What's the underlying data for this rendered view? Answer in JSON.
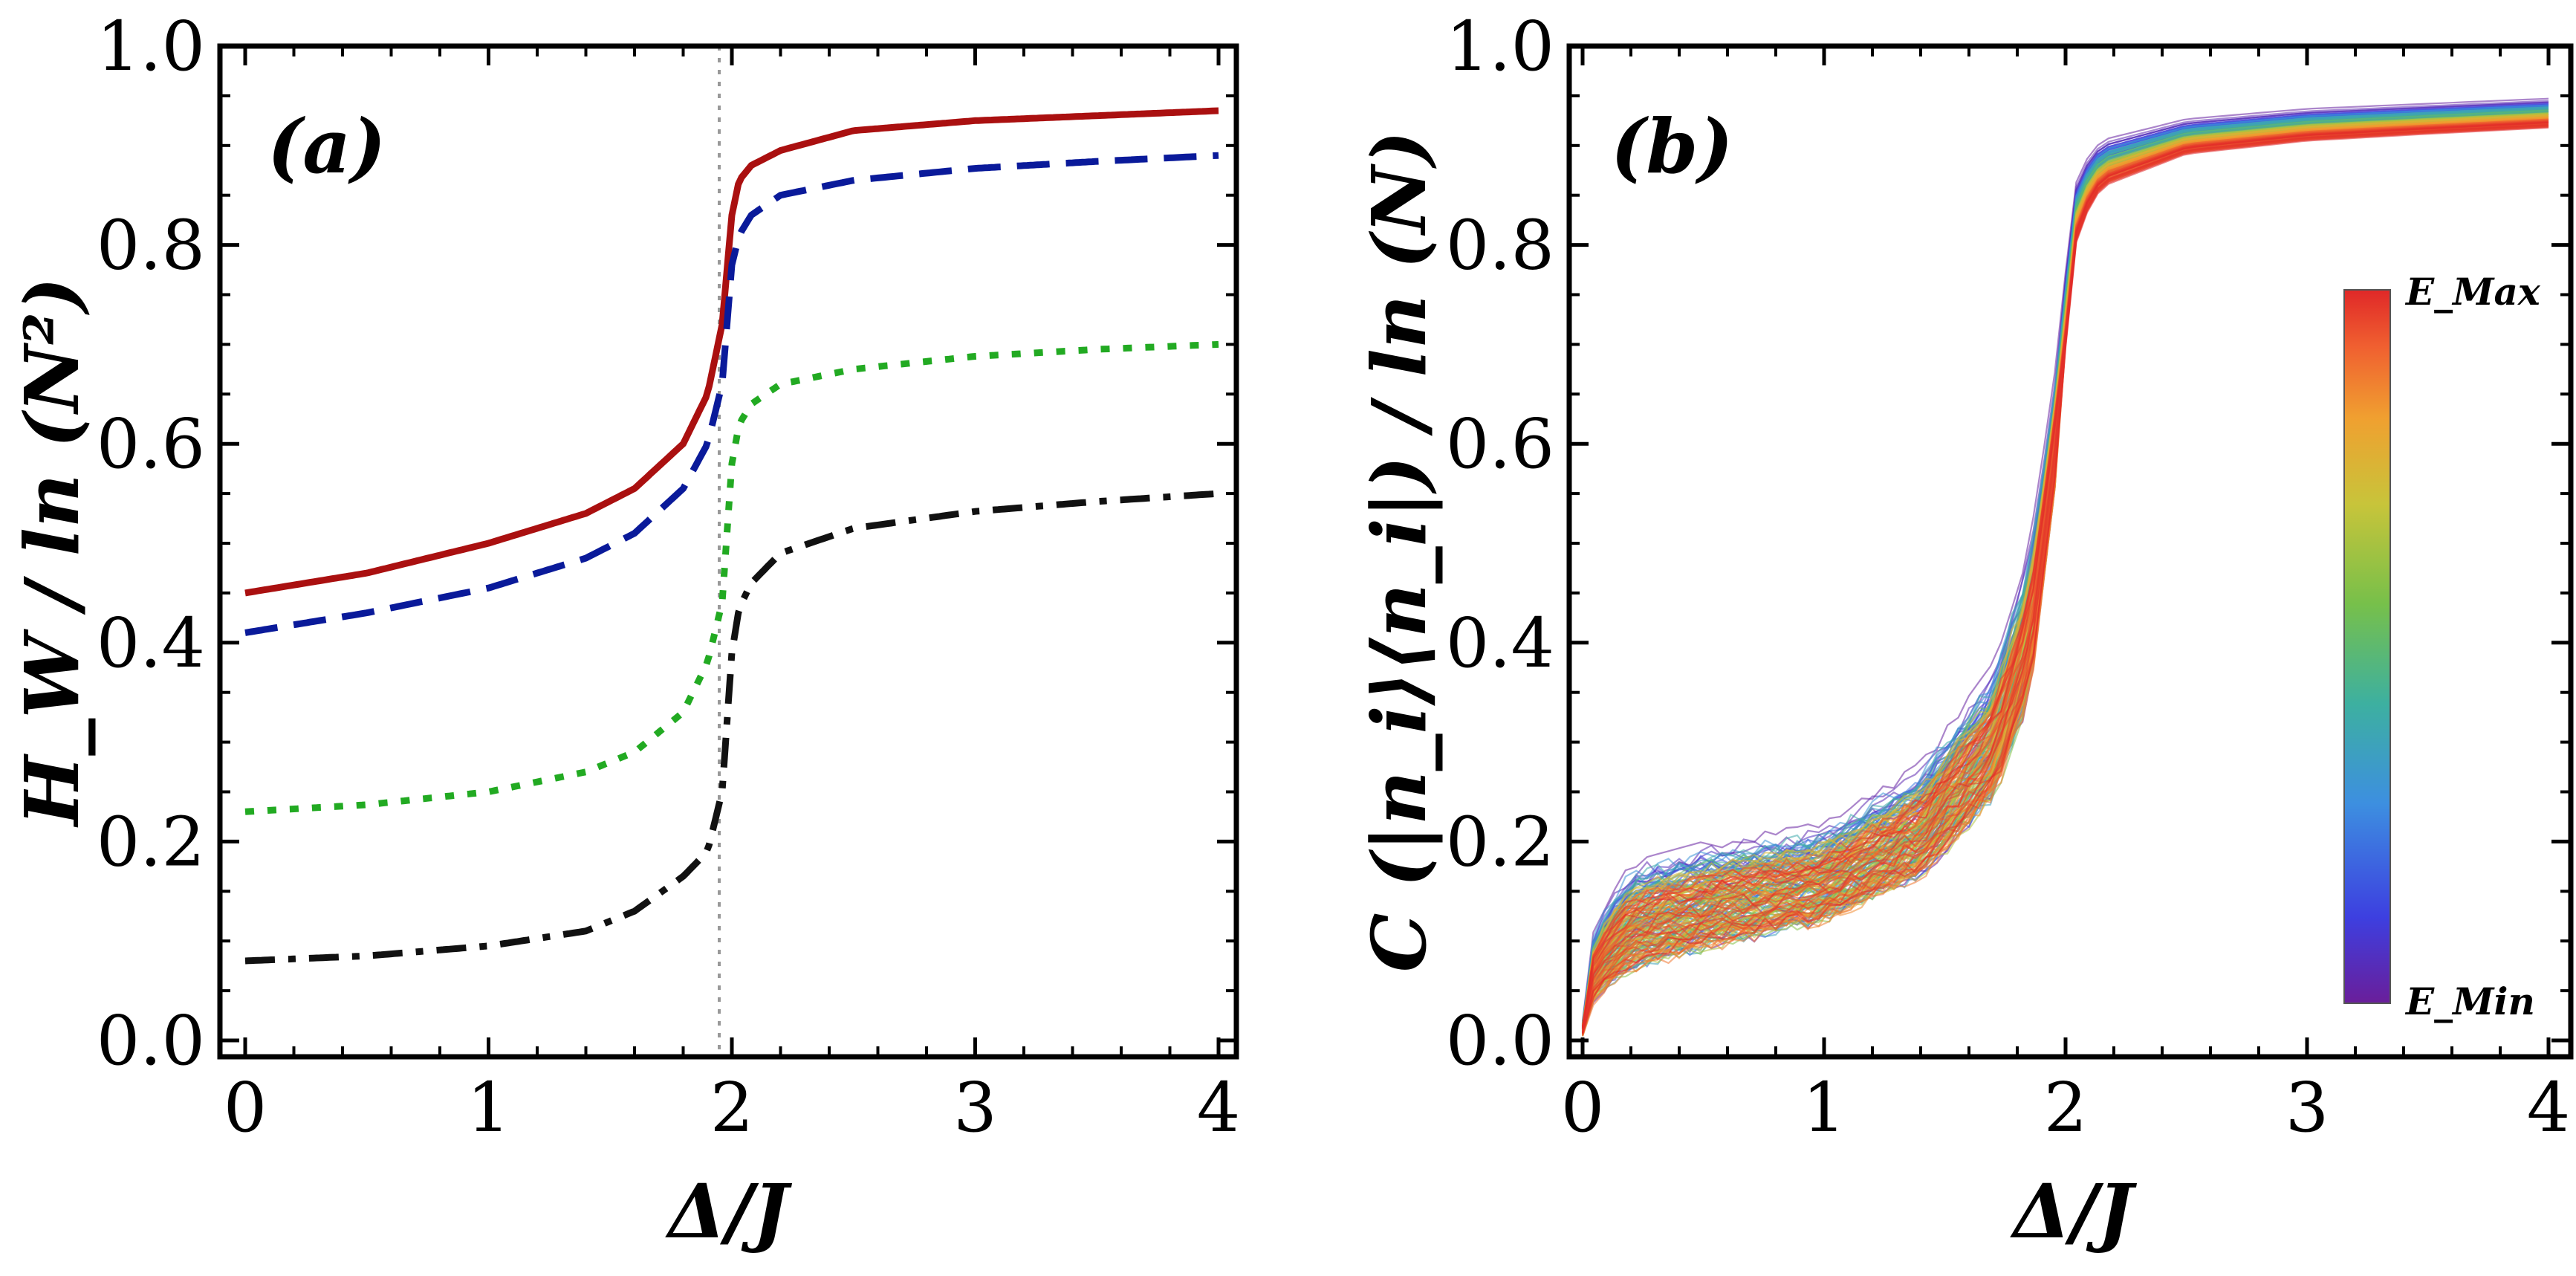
{
  "chart_data": [
    {
      "type": "line",
      "panel_label": "(a)",
      "xlabel": "Δ/J",
      "ylabel": "H_W / ln (N²)",
      "xlim": [
        0,
        4
      ],
      "ylim": [
        0,
        1
      ],
      "xticks": [
        "0",
        "1",
        "2",
        "3",
        "4"
      ],
      "yticks": [
        "0.0",
        "0.2",
        "0.4",
        "0.6",
        "0.8",
        "1.0"
      ],
      "reference_line": {
        "x": 2,
        "style": "dotted",
        "color": "#999999"
      },
      "grid": false,
      "legend": "none",
      "series": [
        {
          "style": "solid",
          "color": "#aa1010",
          "x": [
            0,
            0.5,
            1.0,
            1.4,
            1.6,
            1.8,
            1.9,
            1.96,
            2.0,
            2.03,
            2.08,
            2.2,
            2.5,
            3.0,
            3.5,
            4.0
          ],
          "y": [
            0.45,
            0.47,
            0.5,
            0.53,
            0.555,
            0.6,
            0.65,
            0.72,
            0.83,
            0.865,
            0.88,
            0.895,
            0.915,
            0.925,
            0.93,
            0.935
          ]
        },
        {
          "style": "dashed",
          "color": "#0a1a9a",
          "x": [
            0,
            0.5,
            1.0,
            1.4,
            1.6,
            1.8,
            1.9,
            1.96,
            2.0,
            2.03,
            2.08,
            2.2,
            2.5,
            3.0,
            3.5,
            4.0
          ],
          "y": [
            0.41,
            0.43,
            0.455,
            0.485,
            0.51,
            0.555,
            0.6,
            0.66,
            0.78,
            0.81,
            0.83,
            0.85,
            0.865,
            0.877,
            0.884,
            0.89
          ]
        },
        {
          "style": "dotted",
          "color": "#22aa22",
          "x": [
            0,
            0.5,
            1.0,
            1.4,
            1.6,
            1.8,
            1.9,
            1.96,
            2.0,
            2.03,
            2.08,
            2.2,
            2.5,
            3.0,
            3.5,
            4.0
          ],
          "y": [
            0.23,
            0.237,
            0.25,
            0.27,
            0.29,
            0.33,
            0.38,
            0.44,
            0.58,
            0.62,
            0.64,
            0.66,
            0.675,
            0.688,
            0.695,
            0.7
          ]
        },
        {
          "style": "dashdot",
          "color": "#111111",
          "x": [
            0,
            0.5,
            1.0,
            1.4,
            1.6,
            1.8,
            1.9,
            1.96,
            2.0,
            2.03,
            2.08,
            2.2,
            2.5,
            3.0,
            3.5,
            4.0
          ],
          "y": [
            0.08,
            0.085,
            0.095,
            0.11,
            0.13,
            0.165,
            0.19,
            0.25,
            0.39,
            0.435,
            0.46,
            0.49,
            0.515,
            0.532,
            0.542,
            0.55
          ]
        }
      ]
    },
    {
      "type": "line",
      "panel_label": "(b)",
      "xlabel": "Δ/J",
      "ylabel": "C (|n_i⟩⟨n_i|) / ln (N)",
      "xlim": [
        0,
        4
      ],
      "ylim": [
        0,
        1
      ],
      "xticks": [
        "0",
        "1",
        "2",
        "3",
        "4"
      ],
      "yticks": [
        "0.0",
        "0.2",
        "0.4",
        "0.6",
        "0.8",
        "1.0"
      ],
      "grid": false,
      "legend": "none",
      "ensemble": {
        "description_of_encoding": "color from eigenstate energy",
        "colorbar_min_label": "E_Min",
        "colorbar_max_label": "E_Max",
        "colormap": [
          "#6a1e9a",
          "#3d3fe0",
          "#3d8fe0",
          "#3db0a0",
          "#77c04a",
          "#c8c43a",
          "#f0a030",
          "#f06030",
          "#e02828"
        ],
        "x": [
          0,
          0.05,
          0.2,
          0.5,
          1.0,
          1.4,
          1.7,
          1.85,
          1.95,
          2.0,
          2.05,
          2.15,
          2.5,
          3.0,
          3.5,
          4.0
        ],
        "envelope_low": [
          0.0,
          0.02,
          0.04,
          0.06,
          0.09,
          0.13,
          0.2,
          0.3,
          0.5,
          0.65,
          0.78,
          0.83,
          0.87,
          0.885,
          0.893,
          0.9
        ],
        "envelope_high": [
          0.02,
          0.12,
          0.18,
          0.2,
          0.22,
          0.28,
          0.38,
          0.5,
          0.66,
          0.78,
          0.88,
          0.91,
          0.93,
          0.94,
          0.945,
          0.95
        ]
      }
    }
  ]
}
